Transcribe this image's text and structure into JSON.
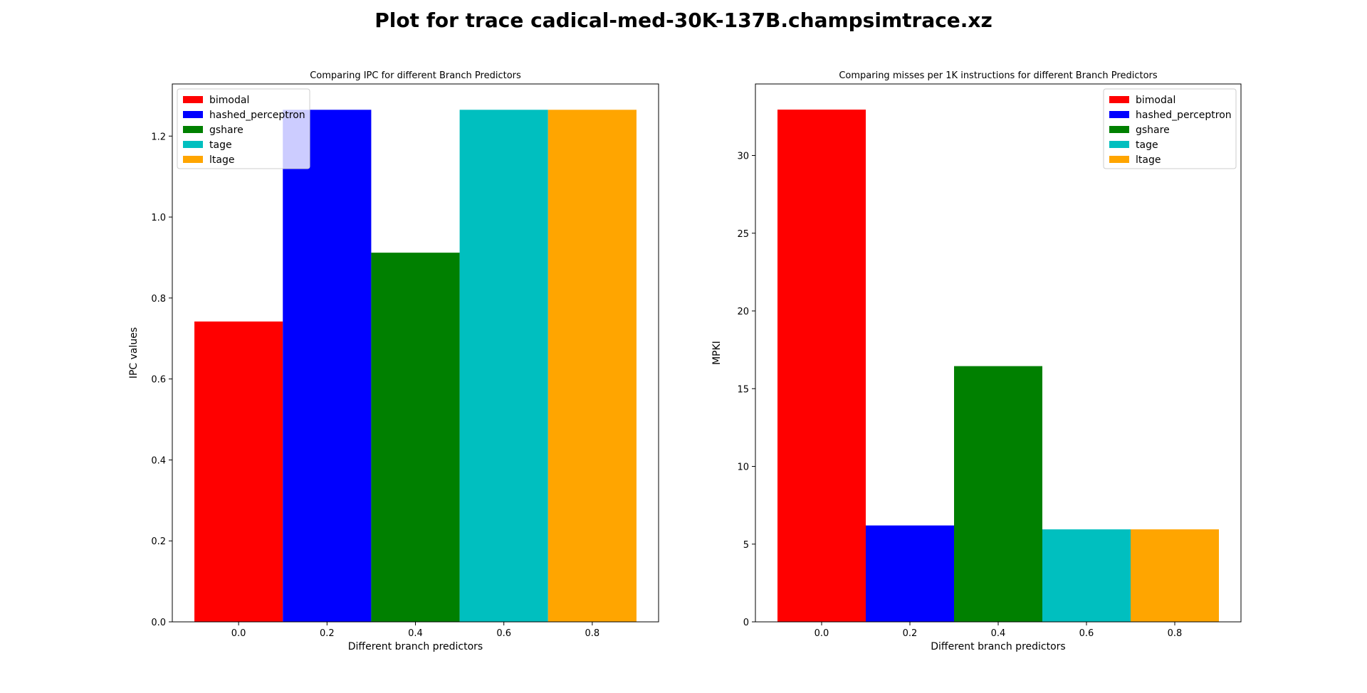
{
  "suptitle": "Plot for trace cadical-med-30K-137B.champsimtrace.xz",
  "chart_data": [
    {
      "type": "bar",
      "title": "Comparing IPC for different Branch Predictors",
      "xlabel": "Different branch predictors",
      "ylabel": "IPC values",
      "xlim": [
        -0.15,
        0.95
      ],
      "ylim": [
        0,
        1.3288
      ],
      "bar_width": 0.2,
      "xticks": [
        0.0,
        0.2,
        0.4,
        0.6,
        0.8
      ],
      "xtick_labels": [
        "0.0",
        "0.2",
        "0.4",
        "0.6",
        "0.8"
      ],
      "yticks": [
        0.0,
        0.2,
        0.4,
        0.6,
        0.8,
        1.0,
        1.2
      ],
      "ytick_labels": [
        "0.0",
        "0.2",
        "0.4",
        "0.6",
        "0.8",
        "1.0",
        "1.2"
      ],
      "legend_position": "top-left",
      "series": [
        {
          "name": "bimodal",
          "x": 0.0,
          "value": 0.742,
          "color": "#ff0000"
        },
        {
          "name": "hashed_perceptron",
          "x": 0.2,
          "value": 1.265,
          "color": "#0000ff"
        },
        {
          "name": "gshare",
          "x": 0.4,
          "value": 0.912,
          "color": "#008000"
        },
        {
          "name": "tage",
          "x": 0.6,
          "value": 1.265,
          "color": "#00bfbf"
        },
        {
          "name": "ltage",
          "x": 0.8,
          "value": 1.265,
          "color": "#ffa500"
        }
      ]
    },
    {
      "type": "bar",
      "title": "Comparing misses per 1K instructions for different Branch Predictors",
      "xlabel": "Different branch predictors",
      "ylabel": "MPKI",
      "xlim": [
        -0.15,
        0.95
      ],
      "ylim": [
        0,
        34.6
      ],
      "bar_width": 0.2,
      "xticks": [
        0.0,
        0.2,
        0.4,
        0.6,
        0.8
      ],
      "xtick_labels": [
        "0.0",
        "0.2",
        "0.4",
        "0.6",
        "0.8"
      ],
      "yticks": [
        0,
        5,
        10,
        15,
        20,
        25,
        30
      ],
      "ytick_labels": [
        "0",
        "5",
        "10",
        "15",
        "20",
        "25",
        "30"
      ],
      "legend_position": "top-right",
      "series": [
        {
          "name": "bimodal",
          "x": 0.0,
          "value": 32.95,
          "color": "#ff0000"
        },
        {
          "name": "hashed_perceptron",
          "x": 0.2,
          "value": 6.2,
          "color": "#0000ff"
        },
        {
          "name": "gshare",
          "x": 0.4,
          "value": 16.45,
          "color": "#008000"
        },
        {
          "name": "tage",
          "x": 0.6,
          "value": 5.95,
          "color": "#00bfbf"
        },
        {
          "name": "ltage",
          "x": 0.8,
          "value": 5.95,
          "color": "#ffa500"
        }
      ]
    }
  ]
}
